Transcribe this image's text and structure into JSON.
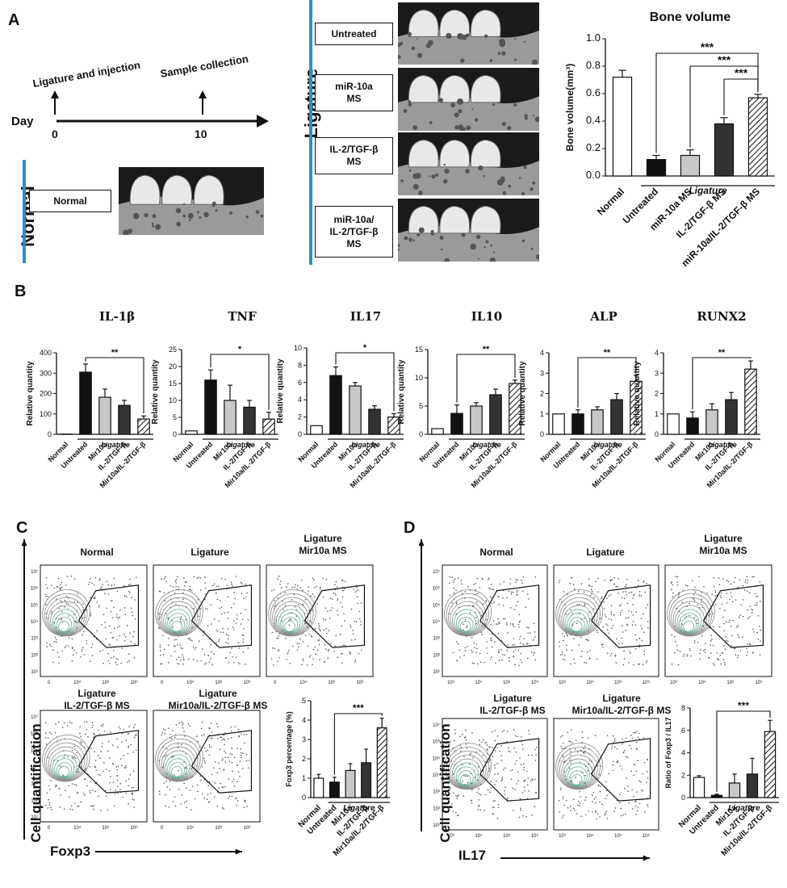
{
  "panels": {
    "a": "A",
    "b": "B",
    "c": "C",
    "d": "D"
  },
  "timeline": {
    "day_label": "Day",
    "day0": "0",
    "day10": "10",
    "event1": "Ligature and injection",
    "event2": "Sample collection"
  },
  "groups": {
    "normal_side": "Normal",
    "normal_box": "Normal",
    "ligature_side": "Ligature",
    "untreated": "Untreated",
    "mir10a": "miR-10a\nMS",
    "il2": "IL-2/TGF-β\nMS",
    "combo": "miR-10a/\nIL-2/TGF-β\nMS"
  },
  "colors": {
    "accent": "#2a8fc9",
    "black": "#111111",
    "gray": "#c8c8c8",
    "dark": "#333333"
  },
  "chart_data": [
    {
      "id": "bone-volume",
      "type": "bar",
      "title": "Bone volume",
      "ylabel": "Bone volume(mm³)",
      "ylim": [
        0,
        1.0
      ],
      "yticks": [
        "0.0",
        "0.2",
        "0.4",
        "0.6",
        "0.8",
        "1.0"
      ],
      "categories": [
        "Normal",
        "Untreated",
        "miR-10a MS",
        "IL-2/TGF-β MS",
        "miR-10a/IL-2/TGF-β MS"
      ],
      "values": [
        0.72,
        0.12,
        0.15,
        0.38,
        0.57
      ],
      "errors": [
        0.05,
        0.03,
        0.04,
        0.045,
        0.025
      ],
      "group_label": "Ligature",
      "sig": [
        {
          "label": "***",
          "from": 1,
          "to": 4
        },
        {
          "label": "***",
          "from": 2,
          "to": 4
        },
        {
          "label": "***",
          "from": 3,
          "to": 4
        }
      ]
    },
    {
      "id": "il1b",
      "type": "bar",
      "title": "IL-1β",
      "ylabel": "Relative quantity",
      "ylim": [
        0,
        400
      ],
      "yticks": [
        "0",
        "100",
        "200",
        "300",
        "400"
      ],
      "categories": [
        "Normal",
        "Untreated",
        "Mir10a",
        "IL-2/TGF-β",
        "Mir10a/IL-2/TGF-β"
      ],
      "values": [
        1,
        305,
        182,
        142,
        75
      ],
      "errors": [
        0,
        40,
        40,
        25,
        15
      ],
      "group_label": "Ligature",
      "sig": [
        {
          "label": "**",
          "from": 1,
          "to": 4
        }
      ]
    },
    {
      "id": "tnf",
      "type": "bar",
      "title": "TNF",
      "ylabel": "Relative quantity",
      "ylim": [
        0,
        25
      ],
      "yticks": [
        "0",
        "5",
        "10",
        "15",
        "20",
        "25"
      ],
      "categories": [
        "Normal",
        "Untreated",
        "Mir10a",
        "IL-2/TGF-β",
        "Mir10a/IL-2/TGF-β"
      ],
      "values": [
        1,
        16,
        10,
        8,
        4.5
      ],
      "errors": [
        0,
        3,
        4.5,
        2,
        2
      ],
      "group_label": "Ligature",
      "sig": [
        {
          "label": "*",
          "from": 1,
          "to": 4
        }
      ]
    },
    {
      "id": "il17",
      "type": "bar",
      "title": "IL17",
      "ylabel": "Relative quantity",
      "ylim": [
        0,
        10
      ],
      "yticks": [
        "0",
        "2",
        "4",
        "6",
        "8",
        "10"
      ],
      "categories": [
        "Normal",
        "Untreated",
        "Mir10a",
        "IL-2/TGF-β",
        "Mir10a/IL-2/TGF-β"
      ],
      "values": [
        1,
        6.8,
        5.6,
        2.9,
        2
      ],
      "errors": [
        0,
        1,
        0.4,
        0.4,
        0.4
      ],
      "group_label": "Ligature",
      "sig": [
        {
          "label": "*",
          "from": 1,
          "to": 4
        }
      ]
    },
    {
      "id": "il10",
      "type": "bar",
      "title": "IL10",
      "ylabel": "Relative quantity",
      "ylim": [
        0,
        15
      ],
      "yticks": [
        "0",
        "5",
        "10",
        "15"
      ],
      "categories": [
        "Normal",
        "Untreated",
        "Mir10a",
        "IL-2/TGF-β",
        "Mir10a/IL-2/TGF-β"
      ],
      "values": [
        1,
        3.7,
        5,
        7,
        9
      ],
      "errors": [
        0,
        1.5,
        0.6,
        1,
        0.6
      ],
      "group_label": "Ligature",
      "sig": [
        {
          "label": "**",
          "from": 1,
          "to": 4
        }
      ]
    },
    {
      "id": "alp",
      "type": "bar",
      "title": "ALP",
      "ylabel": "Relative quantity",
      "ylim": [
        0,
        4
      ],
      "yticks": [
        "0",
        "1",
        "2",
        "3",
        "4"
      ],
      "categories": [
        "Normal",
        "Untreated",
        "Mir10a",
        "IL-2/TGF-β",
        "Mir10a/IL-2/TGF-β"
      ],
      "values": [
        1,
        1,
        1.2,
        1.7,
        2.6
      ],
      "errors": [
        0,
        0.2,
        0.15,
        0.3,
        0.3
      ],
      "group_label": "Ligature",
      "sig": [
        {
          "label": "**",
          "from": 1,
          "to": 4
        }
      ]
    },
    {
      "id": "runx2",
      "type": "bar",
      "title": "RUNX2",
      "ylabel": "Relative quantity",
      "ylim": [
        0,
        4
      ],
      "yticks": [
        "0",
        "1",
        "2",
        "3",
        "4"
      ],
      "categories": [
        "Normal",
        "Untreated",
        "Mir10a",
        "IL-2/TGF-β",
        "Mir10a/IL-2/TGF-β"
      ],
      "values": [
        1,
        0.8,
        1.2,
        1.7,
        3.2
      ],
      "errors": [
        0,
        0.3,
        0.3,
        0.35,
        0.4
      ],
      "group_label": "Ligature",
      "sig": [
        {
          "label": "**",
          "from": 1,
          "to": 4
        }
      ]
    },
    {
      "id": "foxp3",
      "type": "bar",
      "title": "",
      "ylabel": "Foxp3 percentage (%)",
      "ylim": [
        0,
        5
      ],
      "yticks": [
        "0",
        "1",
        "2",
        "3",
        "4",
        "5"
      ],
      "categories": [
        "Normal",
        "Untreated",
        "Mir10a",
        "IL-2/TGF-β",
        "Mir10a/IL-2/TGF-β"
      ],
      "values": [
        1,
        0.8,
        1.4,
        1.8,
        3.6
      ],
      "errors": [
        0.2,
        0.25,
        0.35,
        0.7,
        0.5
      ],
      "group_label": "Ligature",
      "sig": [
        {
          "label": "***",
          "from": 1,
          "to": 4
        }
      ]
    },
    {
      "id": "ratio",
      "type": "bar",
      "title": "",
      "ylabel": "Ratio of Foxp3 / IL17",
      "ylim": [
        0,
        8
      ],
      "yticks": [
        "0",
        "2",
        "4",
        "6",
        "8"
      ],
      "categories": [
        "Normal",
        "Untreated",
        "Mir10a",
        "IL-2/TGF-β",
        "Mir10a/IL-2/TGF-β"
      ],
      "values": [
        1.8,
        0.2,
        1.3,
        2.1,
        5.9
      ],
      "errors": [
        0.15,
        0.1,
        0.8,
        1.4,
        1
      ],
      "group_label": "Ligature",
      "sig": [
        {
          "label": "***",
          "from": 1,
          "to": 4
        }
      ]
    }
  ],
  "flow_c": {
    "titles": [
      "Normal",
      "Ligature",
      "Ligature\nMir10a MS",
      "Ligature\nIL-2/TGF-β MS",
      "Ligature\nMir10a/IL-2/TGF-β  MS"
    ],
    "ylabel": "Cell quantification",
    "xlabel": "Foxp3"
  },
  "flow_d": {
    "titles": [
      "Normal",
      "Ligature",
      "Ligature\nMir10a MS",
      "Ligature\nIL-2/TGF-β MS",
      "Ligature\nMir10a/IL-2/TGF-β  MS"
    ],
    "ylabel": "Cell quantification",
    "xlabel": "IL17"
  },
  "axis_ticks": {
    "c_y": [
      "10⁷",
      "10⁶",
      "10⁵",
      "10⁴",
      "10³",
      "10²",
      "10¹"
    ],
    "c_x": [
      "0",
      "10⁴",
      "10⁵",
      "10⁶"
    ],
    "d_y": [
      "10⁷",
      "10⁶",
      "10⁵",
      "10⁴",
      "10³",
      "10²",
      "10¹"
    ],
    "d_x": [
      "10³",
      "10⁴",
      "10⁵",
      "10⁶"
    ]
  }
}
